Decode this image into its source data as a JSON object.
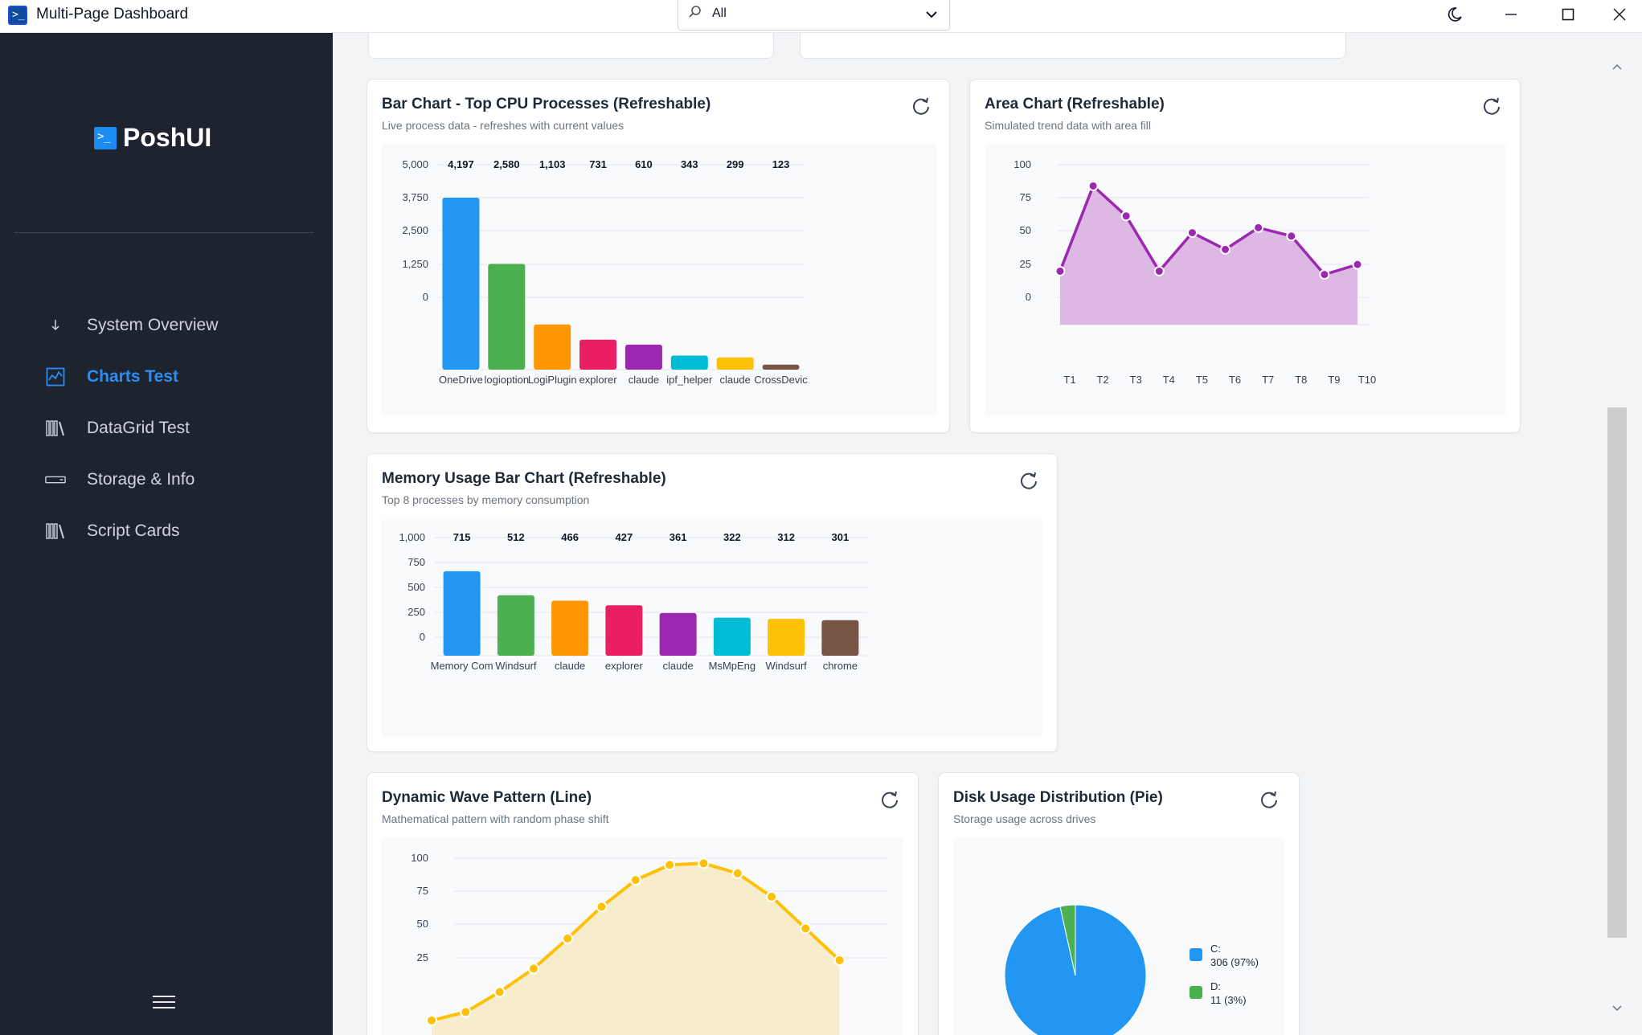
{
  "window": {
    "title": "Multi-Page Dashboard",
    "search_value": "All"
  },
  "sidebar": {
    "brand": "PoshUI",
    "items": [
      {
        "label": "System Overview",
        "icon": "download-arrow-icon",
        "active": false
      },
      {
        "label": "Charts Test",
        "icon": "chart-icon",
        "active": true
      },
      {
        "label": "DataGrid Test",
        "icon": "library-icon",
        "active": false
      },
      {
        "label": "Storage & Info",
        "icon": "drive-icon",
        "active": false
      },
      {
        "label": "Script Cards",
        "icon": "library-icon",
        "active": false
      }
    ]
  },
  "colors": {
    "accent": "#2b8cf2",
    "sidebar_bg": "#1e2330",
    "palette": [
      "#2196f3",
      "#4caf50",
      "#ff9800",
      "#e91e63",
      "#9c27b0",
      "#00bcd4",
      "#ffc107",
      "#795548"
    ]
  },
  "cards": {
    "cpu": {
      "title": "Bar Chart - Top CPU Processes (Refreshable)",
      "subtitle": "Live process data - refreshes with current values"
    },
    "area": {
      "title": "Area Chart (Refreshable)",
      "subtitle": "Simulated trend data with area fill"
    },
    "memory": {
      "title": "Memory Usage Bar Chart (Refreshable)",
      "subtitle": "Top 8 processes by memory consumption"
    },
    "wave": {
      "title": "Dynamic Wave Pattern (Line)",
      "subtitle": "Mathematical pattern with random phase shift"
    },
    "disk": {
      "title": "Disk Usage Distribution (Pie)",
      "subtitle": "Storage usage across drives"
    }
  },
  "chart_data": [
    {
      "id": "cpu",
      "type": "bar",
      "categories": [
        "OneDrive",
        "logioption",
        "LogiPlugin",
        "explorer",
        "claude",
        "ipf_helper",
        "claude",
        "CrossDevic"
      ],
      "values": [
        4197,
        2580,
        1103,
        731,
        610,
        343,
        299,
        123
      ],
      "value_labels": [
        "4,197",
        "2,580",
        "1,103",
        "731",
        "610",
        "343",
        "299",
        "123"
      ],
      "yticks": [
        "5,000",
        "3,750",
        "2,500",
        "1,250",
        "0"
      ],
      "ylim": [
        0,
        5000
      ]
    },
    {
      "id": "area",
      "type": "area",
      "categories": [
        "T1",
        "T2",
        "T3",
        "T4",
        "T5",
        "T6",
        "T7",
        "T8",
        "T9",
        "T10"
      ],
      "values": [
        32,
        83,
        65,
        32,
        55,
        45,
        58,
        53,
        30,
        36
      ],
      "yticks": [
        "100",
        "75",
        "50",
        "25",
        "0"
      ],
      "ylim": [
        0,
        100
      ]
    },
    {
      "id": "memory",
      "type": "bar",
      "categories": [
        "Memory Com",
        "Windsurf",
        "claude",
        "explorer",
        "claude",
        "MsMpEng",
        "Windsurf",
        "chrome"
      ],
      "values": [
        715,
        512,
        466,
        427,
        361,
        322,
        312,
        301
      ],
      "value_labels": [
        "715",
        "512",
        "466",
        "427",
        "361",
        "322",
        "312",
        "301"
      ],
      "yticks": [
        "1,000",
        "750",
        "500",
        "250",
        "0"
      ],
      "ylim": [
        0,
        1000
      ]
    },
    {
      "id": "wave",
      "type": "line",
      "values": [
        2,
        7,
        19,
        33,
        51,
        70,
        86,
        95,
        96,
        90,
        76,
        57,
        38
      ],
      "yticks": [
        "100",
        "75",
        "50",
        "25"
      ],
      "ylim": [
        0,
        100
      ]
    },
    {
      "id": "disk",
      "type": "pie",
      "slices": [
        {
          "label": "C:",
          "value": 306,
          "detail": "306 (97%)"
        },
        {
          "label": "D:",
          "value": 11,
          "detail": "11 (3%)"
        }
      ]
    }
  ]
}
